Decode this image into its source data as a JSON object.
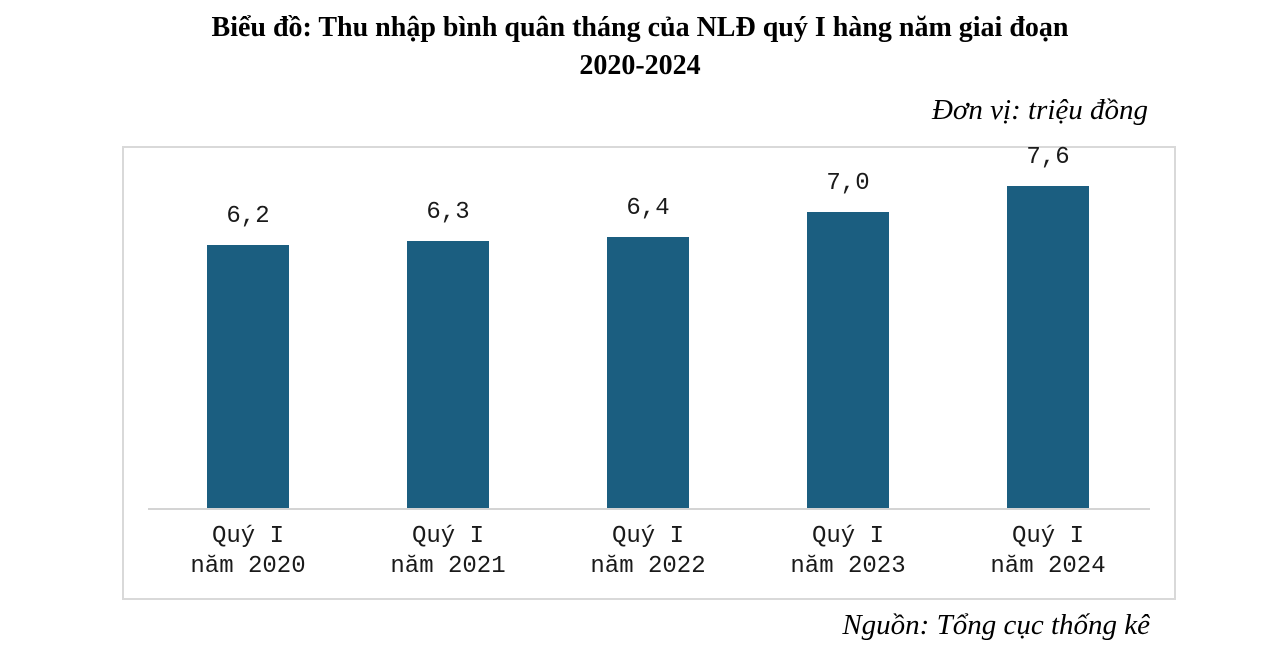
{
  "chart_data": {
    "type": "bar",
    "title": "Biểu đồ: Thu nhập bình quân tháng của NLĐ quý I hàng năm giai đoạn 2020-2024",
    "title_lines": [
      "Biểu đồ: Thu nhập bình quân tháng của NLĐ quý I hàng năm giai đoạn",
      "2020-2024"
    ],
    "unit_label": "Đơn vị: triệu đồng",
    "source_label": "Nguồn: Tổng cục thống kê",
    "categories": [
      "Quý I năm 2020",
      "Quý I năm 2021",
      "Quý I năm 2022",
      "Quý I năm 2023",
      "Quý I năm 2024"
    ],
    "category_lines": [
      [
        "Quý I",
        "năm 2020"
      ],
      [
        "Quý I",
        "năm 2021"
      ],
      [
        "Quý I",
        "năm 2022"
      ],
      [
        "Quý I",
        "năm 2023"
      ],
      [
        "Quý I",
        "năm 2024"
      ]
    ],
    "values": [
      6.2,
      6.3,
      6.4,
      7.0,
      7.6
    ],
    "value_labels": [
      "6,2",
      "6,3",
      "6,4",
      "7,0",
      "7,6"
    ],
    "xlabel": "",
    "ylabel": "",
    "ylim": [
      0,
      8.5
    ],
    "grid": false,
    "legend": null,
    "bar_color": "#1b5e80",
    "frame_border_color": "#d9d9d9",
    "axis_line_color": "#d4d4d4"
  }
}
